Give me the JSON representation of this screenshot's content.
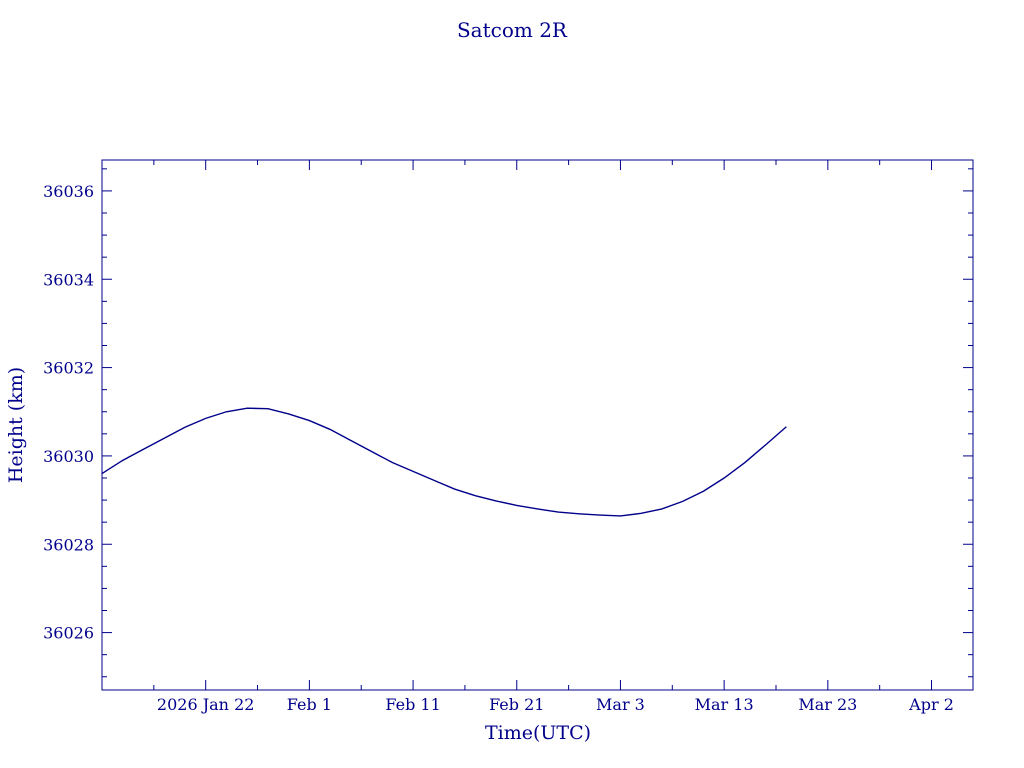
{
  "chart_data": {
    "type": "line",
    "title": "Satcom 2R",
    "xlabel": "Time(UTC)",
    "ylabel": "Height (km)",
    "xlim": [
      "2026-01-12",
      "2026-04-06"
    ],
    "ylim": [
      36024.7,
      36036.7
    ],
    "x_tick_labels": [
      {
        "date": "2026-01-22",
        "label": "2026 Jan 22"
      },
      {
        "date": "2026-02-01",
        "label": "Feb  1"
      },
      {
        "date": "2026-02-11",
        "label": "Feb 11"
      },
      {
        "date": "2026-02-21",
        "label": "Feb 21"
      },
      {
        "date": "2026-03-03",
        "label": "Mar  3"
      },
      {
        "date": "2026-03-13",
        "label": "Mar 13"
      },
      {
        "date": "2026-03-23",
        "label": "Mar 23"
      },
      {
        "date": "2026-04-02",
        "label": "Apr  2"
      }
    ],
    "y_ticks": [
      36026,
      36028,
      36030,
      36032,
      36034,
      36036
    ],
    "y_tick_labels": [
      "36026",
      "36028",
      "36030",
      "36032",
      "36034",
      "36036"
    ],
    "grid": false,
    "series": [
      {
        "x": [
          "2026-01-12",
          "2026-01-14",
          "2026-01-16",
          "2026-01-18",
          "2026-01-20",
          "2026-01-22",
          "2026-01-24",
          "2026-01-26",
          "2026-01-28",
          "2026-01-30",
          "2026-02-01",
          "2026-02-03",
          "2026-02-05",
          "2026-02-07",
          "2026-02-09",
          "2026-02-11",
          "2026-02-13",
          "2026-02-15",
          "2026-02-17",
          "2026-02-19",
          "2026-02-21",
          "2026-02-23",
          "2026-02-25",
          "2026-02-27",
          "2026-03-01",
          "2026-03-03",
          "2026-03-05",
          "2026-03-07",
          "2026-03-09",
          "2026-03-11",
          "2026-03-13",
          "2026-03-15",
          "2026-03-17",
          "2026-03-19"
        ],
        "y": [
          36029.6,
          36029.9,
          36030.15,
          36030.4,
          36030.65,
          36030.85,
          36031.0,
          36031.08,
          36031.07,
          36030.95,
          36030.8,
          36030.6,
          36030.35,
          36030.1,
          36029.85,
          36029.65,
          36029.45,
          36029.25,
          36029.1,
          36028.98,
          36028.88,
          36028.8,
          36028.73,
          36028.69,
          36028.66,
          36028.64,
          36028.7,
          36028.8,
          36028.97,
          36029.2,
          36029.5,
          36029.85,
          36030.25,
          36030.66
        ]
      }
    ],
    "colors": {
      "axis": "#00008b",
      "line": "#00008b",
      "text": "#00008b",
      "background": "#ffffff"
    }
  }
}
